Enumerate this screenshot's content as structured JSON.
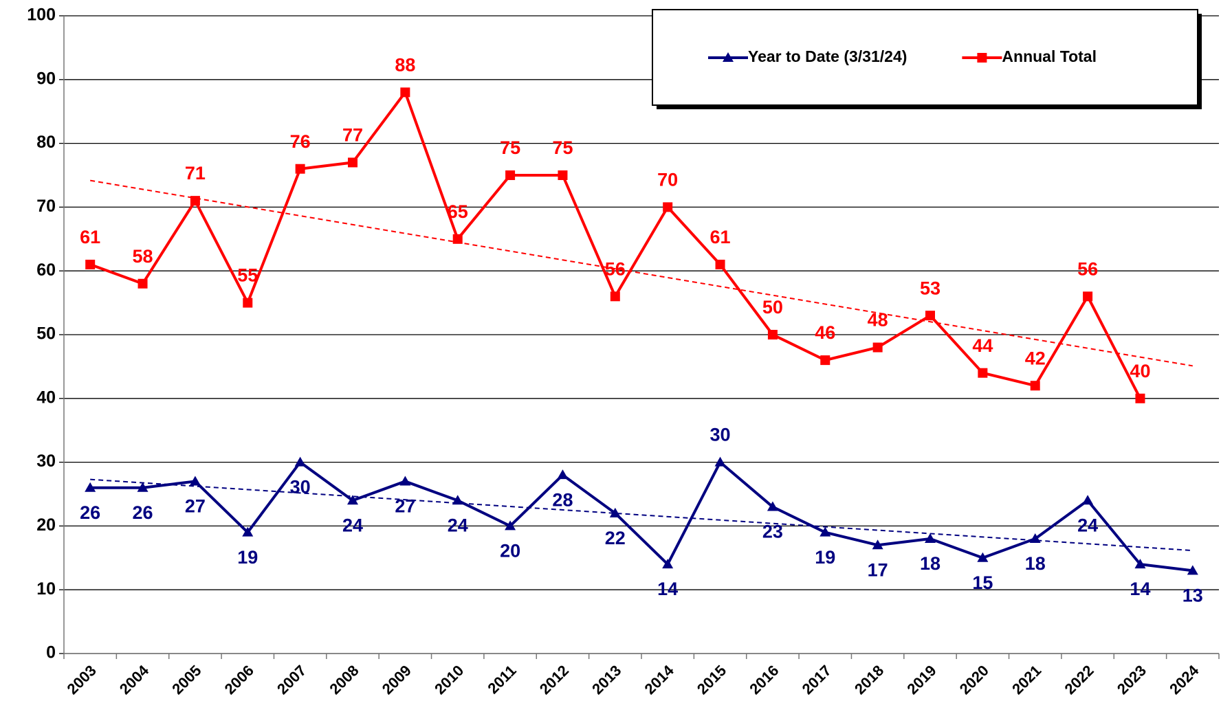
{
  "chart_data": {
    "type": "line",
    "categories": [
      "2003",
      "2004",
      "2005",
      "2006",
      "2007",
      "2008",
      "2009",
      "2010",
      "2011",
      "2012",
      "2013",
      "2014",
      "2015",
      "2016",
      "2017",
      "2018",
      "2019",
      "2020",
      "2021",
      "2022",
      "2023",
      "2024"
    ],
    "series": [
      {
        "name": "Year to Date (3/31/24)",
        "color": "#000080",
        "marker": "triangle",
        "trendline": true,
        "values": [
          26,
          26,
          27,
          19,
          30,
          24,
          27,
          24,
          20,
          28,
          22,
          14,
          30,
          23,
          19,
          17,
          18,
          15,
          18,
          24,
          14,
          13
        ]
      },
      {
        "name": "Annual Total",
        "color": "#ff0000",
        "marker": "square",
        "trendline": true,
        "values": [
          61,
          58,
          71,
          55,
          76,
          77,
          88,
          65,
          75,
          75,
          56,
          70,
          61,
          50,
          46,
          48,
          53,
          44,
          42,
          56,
          40,
          null
        ]
      }
    ],
    "ylim": [
      0,
      100
    ],
    "yticks": [
      0,
      10,
      20,
      30,
      40,
      50,
      60,
      70,
      80,
      90,
      100
    ],
    "grid": true,
    "legend": "upper right"
  }
}
